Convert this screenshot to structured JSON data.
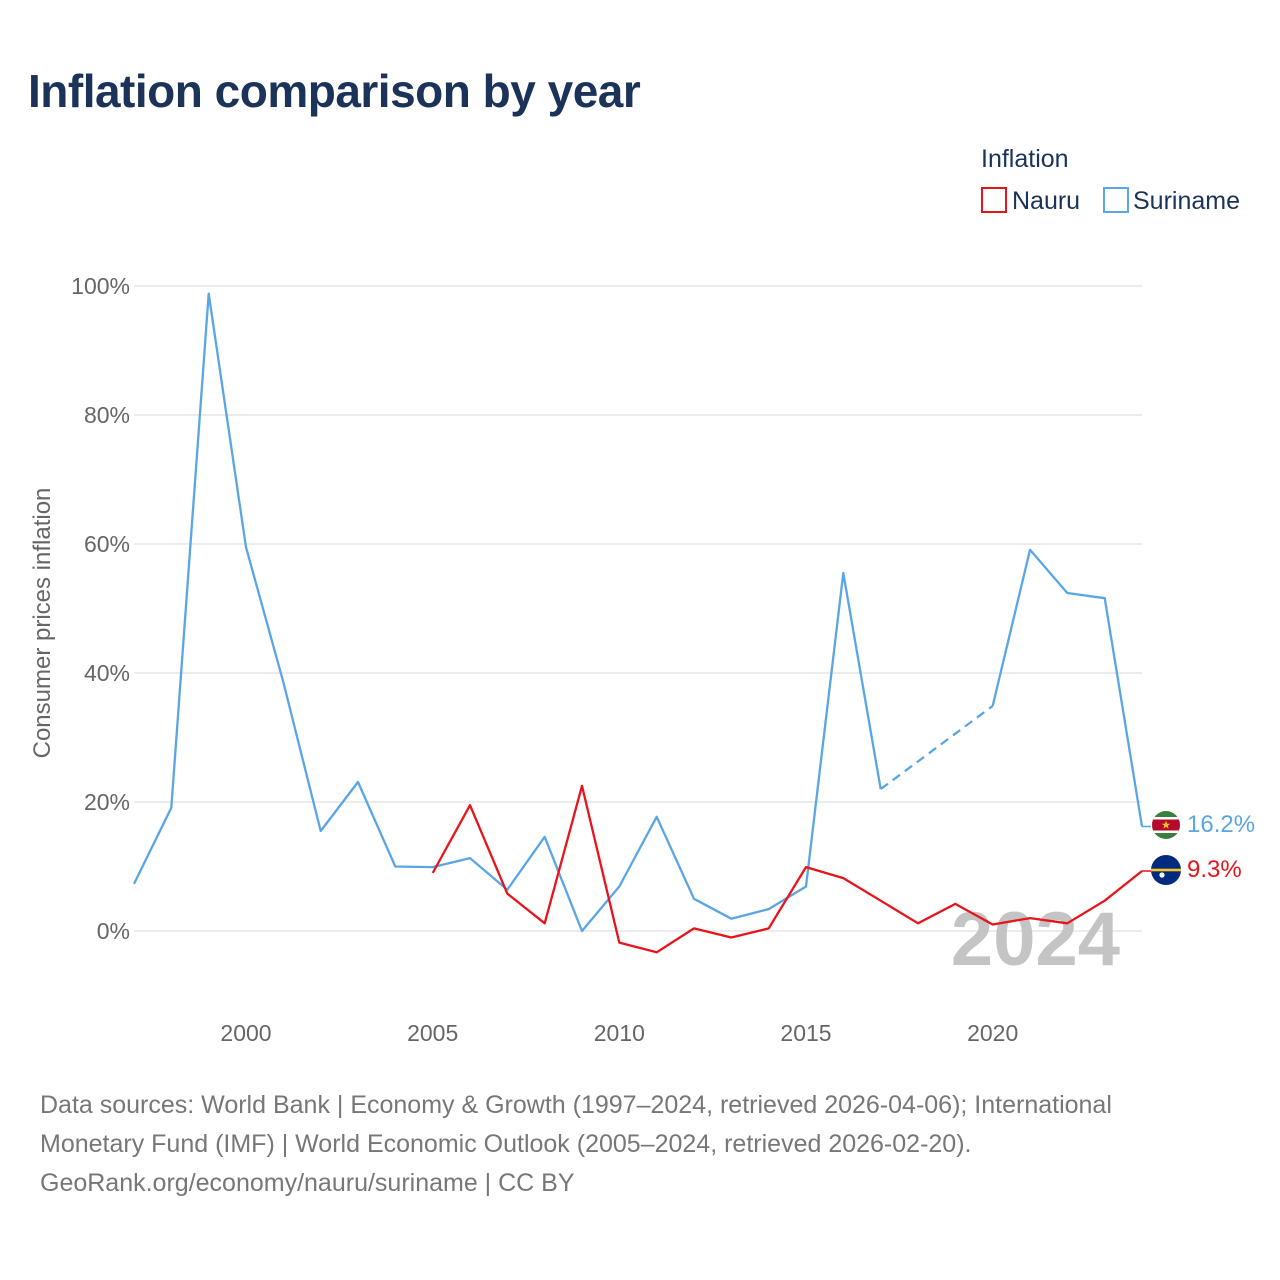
{
  "title": "Inflation comparison by year",
  "chart_data": {
    "type": "line",
    "title": "Inflation comparison by year",
    "xlabel": "",
    "ylabel": "Consumer prices inflation",
    "xlim": [
      1997,
      2024
    ],
    "ylim": [
      -10,
      100
    ],
    "x_ticks": [
      2000,
      2005,
      2010,
      2015,
      2020
    ],
    "x_tick_labels": [
      "2000",
      "2005",
      "2010",
      "2015",
      "2020"
    ],
    "y_ticks": [
      0,
      20,
      40,
      60,
      80,
      100
    ],
    "y_tick_labels": [
      "0%",
      "20%",
      "40%",
      "60%",
      "80%",
      "100%"
    ],
    "grid": true,
    "legend": {
      "title": "Inflation",
      "position": "top-right",
      "entries": [
        "Nauru",
        "Suriname"
      ]
    },
    "current_year_label": "2024",
    "series": [
      {
        "name": "Nauru",
        "color": "#e8141b",
        "x": [
          2005,
          2006,
          2007,
          2008,
          2009,
          2010,
          2011,
          2012,
          2013,
          2014,
          2015,
          2016,
          2017,
          2018,
          2019,
          2020,
          2021,
          2022,
          2023,
          2024
        ],
        "values": [
          9.0,
          19.5,
          5.8,
          1.2,
          22.5,
          -1.8,
          -3.3,
          0.4,
          -1.0,
          0.4,
          9.9,
          8.2,
          4.7,
          1.2,
          4.2,
          1.0,
          2.0,
          1.2,
          4.7,
          9.3
        ],
        "dashed_segments": [],
        "end_label": "9.3%",
        "end_icon": "nauru-flag-icon"
      },
      {
        "name": "Suriname",
        "color": "#5aa5e6",
        "x": [
          1997,
          1998,
          1999,
          2000,
          2001,
          2002,
          2003,
          2004,
          2005,
          2006,
          2007,
          2008,
          2009,
          2010,
          2011,
          2012,
          2013,
          2014,
          2015,
          2016,
          2017,
          2020,
          2021,
          2022,
          2023,
          2024
        ],
        "values": [
          7.3,
          19.1,
          98.8,
          59.5,
          38.6,
          15.5,
          23.1,
          10.0,
          9.9,
          11.3,
          6.4,
          14.6,
          0.0,
          6.9,
          17.7,
          5.0,
          1.9,
          3.4,
          6.9,
          55.5,
          22.0,
          34.9,
          59.1,
          52.4,
          51.6,
          16.2
        ],
        "dashed_segments": [
          [
            2017,
            2020
          ]
        ],
        "end_label": "16.2%",
        "end_icon": "suriname-flag-icon"
      }
    ]
  },
  "footer": {
    "line1": "Data sources: World Bank | Economy & Growth (1997–2024, retrieved 2026-04-06); International",
    "line2": "Monetary Fund (IMF) | World Economic Outlook (2005–2024, retrieved 2026-02-20).",
    "line3": "GeoRank.org/economy/nauru/suriname | CC BY"
  }
}
